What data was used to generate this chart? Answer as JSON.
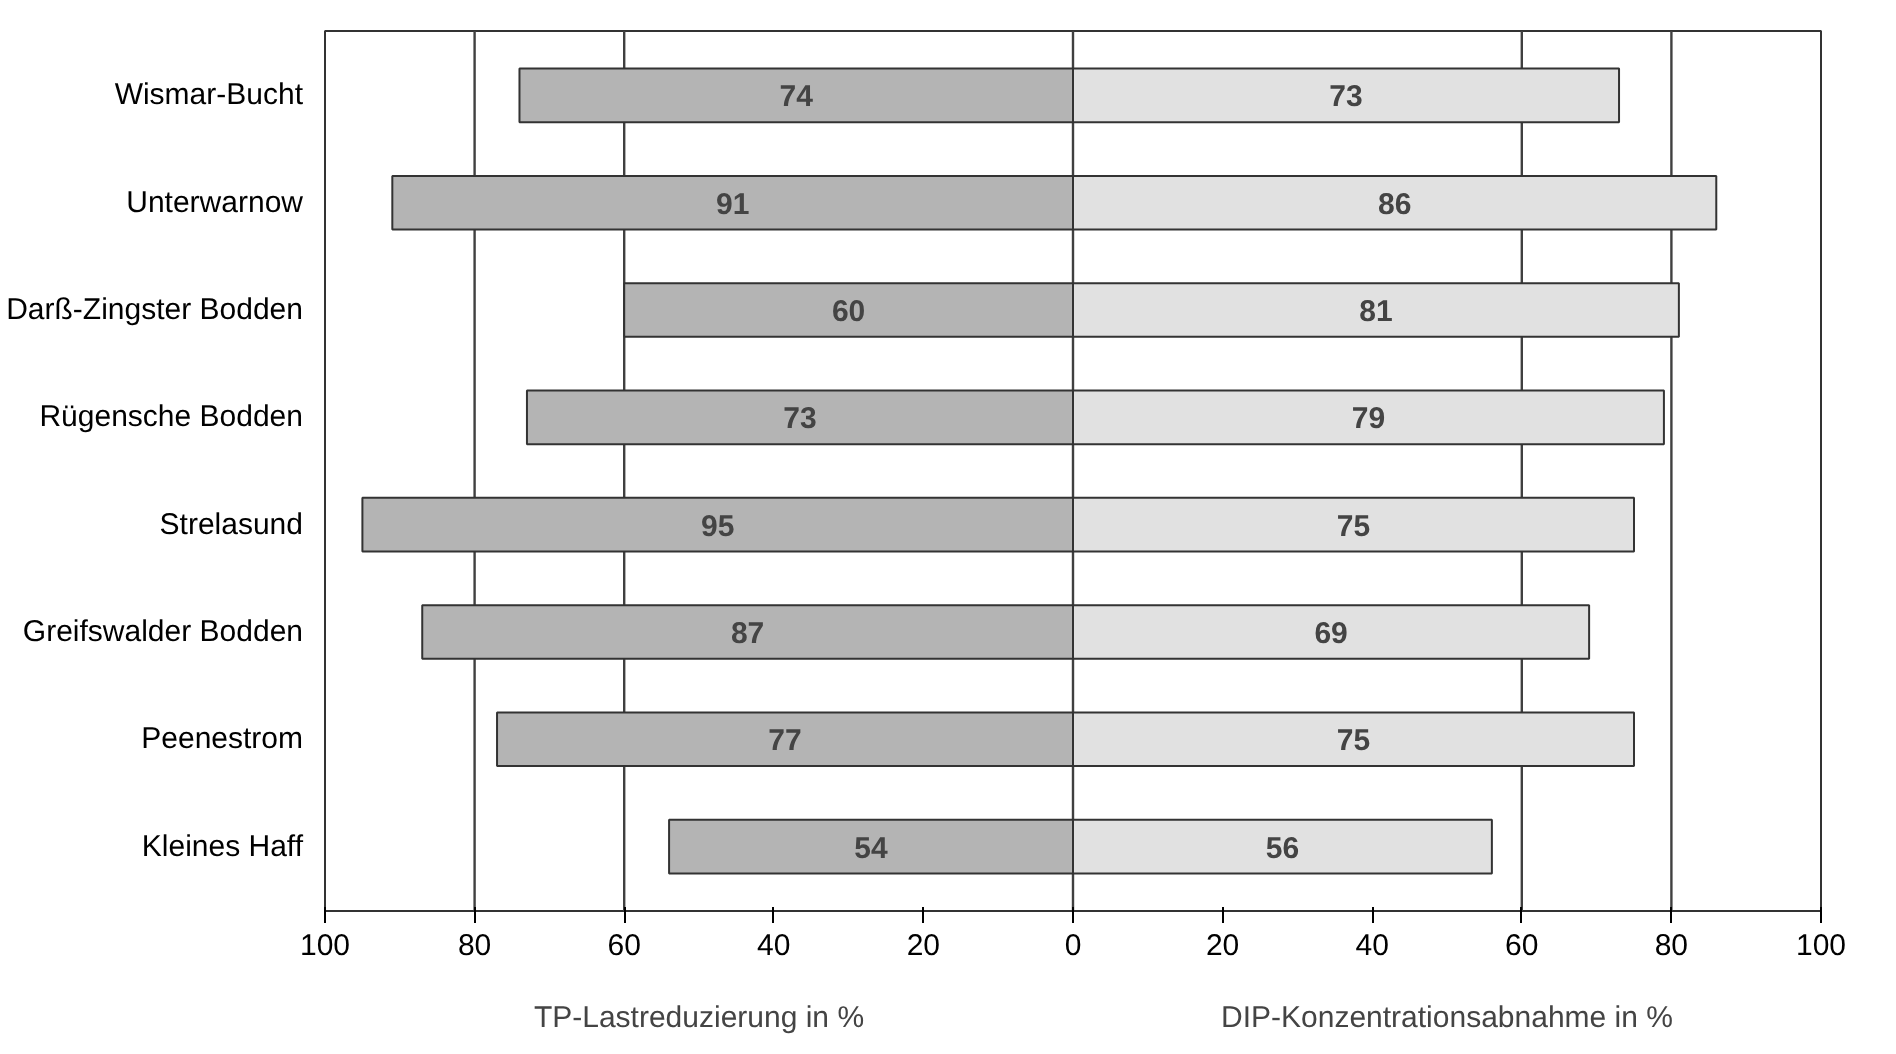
{
  "chart_data": {
    "type": "bar",
    "orientation": "horizontal",
    "categories": [
      "Wismar-Bucht",
      "Unterwarnow",
      "Darß-Zingster Bodden",
      "Rügensche Bodden",
      "Strelasund",
      "Greifswalder Bodden",
      "Peenestrom",
      "Kleines Haff"
    ],
    "series": [
      {
        "color": "#b4b4b4",
        "base": [
          -74,
          -91,
          -60,
          -73,
          -95,
          -87,
          -77,
          -54
        ],
        "values": [
          74,
          91,
          60,
          73,
          95,
          87,
          77,
          54
        ],
        "value_labels": [
          "74",
          "91",
          "60",
          "73",
          "95",
          "87",
          "77",
          "54"
        ]
      },
      {
        "color": "#e1e1e1",
        "values": [
          73,
          86,
          81,
          79,
          75,
          69,
          75,
          56
        ],
        "value_labels": [
          "73",
          "86",
          "81",
          "79",
          "75",
          "69",
          "75",
          "56"
        ]
      }
    ],
    "xlim": [
      -100,
      100
    ],
    "xticks": [
      {
        "value": -100,
        "label": "100"
      },
      {
        "value": -80,
        "label": "80"
      },
      {
        "value": -60,
        "label": "60"
      },
      {
        "value": -40,
        "label": "40"
      },
      {
        "value": -20,
        "label": "20"
      },
      0,
      20,
      40,
      60,
      80,
      100
    ],
    "ref_lines": [
      {
        "axis": "x",
        "value": -80,
        "color": "#404040"
      },
      {
        "axis": "x",
        "value": -60,
        "color": "#404040"
      },
      {
        "axis": "x",
        "value": 0,
        "color": "#404040"
      },
      {
        "axis": "x",
        "value": 60,
        "color": "#404040"
      },
      {
        "axis": "x",
        "value": 80,
        "color": "#404040"
      }
    ],
    "annotations": [
      "TP-Lastreduzierung in %",
      "DIP-Konzentrationsabnahme in %"
    ],
    "grid": false
  }
}
